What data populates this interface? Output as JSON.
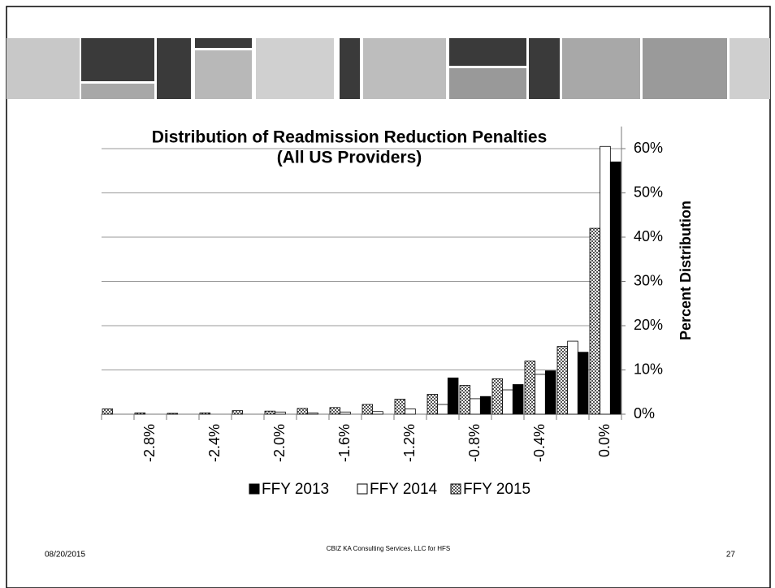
{
  "chart_data": {
    "type": "bar",
    "title": "Distribution of Readmission Reduction Penalties",
    "subtitle": "(All US Providers)",
    "y_label": "Percent Distribution",
    "categories": [
      null,
      "-2.8%",
      null,
      "-2.4%",
      null,
      "-2.0%",
      null,
      "-1.6%",
      null,
      "-1.2%",
      null,
      "-0.8%",
      null,
      "-0.4%",
      null,
      "0.0%"
    ],
    "series": [
      {
        "name": "FFY 2013",
        "color": "#000000",
        "values": [
          0,
          0,
          0,
          0,
          0,
          0,
          0,
          0,
          0,
          0,
          8.2,
          4.0,
          6.7,
          9.8,
          14,
          57
        ]
      },
      {
        "name": "FFY 2014",
        "color": "#ffffff",
        "values": [
          0,
          0,
          0,
          0,
          0,
          0.5,
          0.3,
          0.5,
          0.6,
          1.2,
          2.2,
          3.5,
          5.5,
          9,
          16.5,
          60.5
        ]
      },
      {
        "name": "FFY 2015",
        "color": "#808080",
        "pattern": "checker",
        "values": [
          1.2,
          0.3,
          0.2,
          0.3,
          0.8,
          0.7,
          1.3,
          1.5,
          2.2,
          3.4,
          4.5,
          6.5,
          8,
          12,
          15.3,
          42
        ]
      }
    ],
    "ylim": [
      0,
      65
    ],
    "yticks": [
      {
        "value": 0,
        "label": "0%"
      },
      {
        "value": 10,
        "label": "10%"
      },
      {
        "value": 20,
        "label": "20%"
      },
      {
        "value": 30,
        "label": "30%"
      },
      {
        "value": 40,
        "label": "40%"
      },
      {
        "value": 50,
        "label": "50%"
      },
      {
        "value": 60,
        "label": "60%"
      }
    ],
    "grid": true,
    "y_axis_side": "right",
    "legend": "bottom"
  },
  "footer": {
    "date": "08/20/2015",
    "credit": "CBIZ KA Consulting Services, LLC for HFS",
    "page": "27"
  }
}
